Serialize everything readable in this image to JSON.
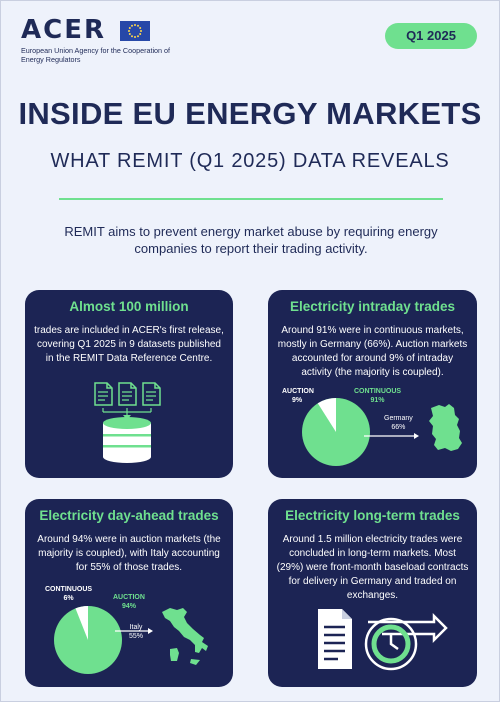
{
  "header": {
    "org_name": "ACER",
    "org_subtitle": "European Union Agency for the Cooperation of Energy Regulators",
    "period_badge": "Q1 2025"
  },
  "title": "INSIDE EU ENERGY MARKETS",
  "subtitle": "WHAT REMIT (Q1 2025) DATA REVEALS",
  "intro": "REMIT aims to prevent energy market abuse by requiring energy companies to report their trading activity.",
  "colors": {
    "navy": "#1c2454",
    "green": "#6fe08f",
    "background": "#eef2fb",
    "white": "#ffffff"
  },
  "cards": {
    "total": {
      "title": "Almost 100 million",
      "text": "trades are included in ACER's first release, covering Q1 2025 in 9 datasets published in the REMIT Data Reference Centre.",
      "icon": "documents-to-database-icon"
    },
    "intraday": {
      "title": "Electricity intraday trades",
      "text": "Around 91% were in continuous markets, mostly in Germany (66%). Auction markets accounted for around 9% of intraday activity (the majority is coupled).",
      "labels": {
        "auction_name": "AUCTION",
        "auction_value": "9%",
        "continuous_name": "CONTINUOUS",
        "continuous_value": "91%",
        "country_name": "Germany",
        "country_value": "66%"
      },
      "shares": {
        "auction": 9,
        "continuous": 91,
        "germany_of_continuous": 66
      },
      "icon": "germany-map-icon"
    },
    "dayahead": {
      "title": "Electricity day-ahead trades",
      "text": "Around 94% were in auction markets (the majority is coupled), with Italy accounting for 55% of those trades.",
      "labels": {
        "continuous_name": "CONTINUOUS",
        "continuous_value": "6%",
        "auction_name": "AUCTION",
        "auction_value": "94%",
        "country_name": "Italy",
        "country_value": "55%"
      },
      "shares": {
        "continuous": 6,
        "auction": 94,
        "italy_of_auction": 55
      },
      "icon": "italy-map-icon"
    },
    "longterm": {
      "title": "Electricity long-term trades",
      "text": "Around 1.5 million electricity trades were concluded in long-term markets. Most (29%) were front-month baseload contracts for delivery in Germany and traded on exchanges.",
      "icon": "contract-clock-arrow-icon"
    }
  }
}
